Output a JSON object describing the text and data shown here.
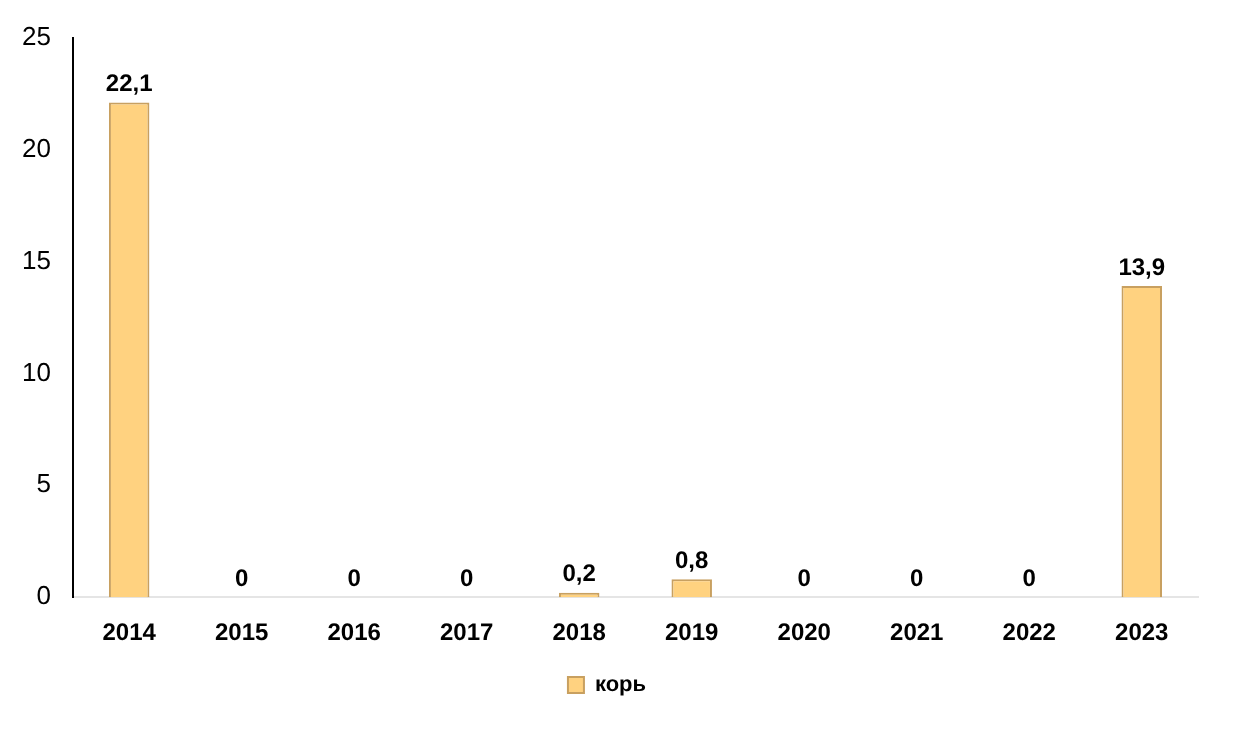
{
  "chart_data": {
    "type": "bar",
    "categories": [
      "2014",
      "2015",
      "2016",
      "2017",
      "2018",
      "2019",
      "2020",
      "2021",
      "2022",
      "2023"
    ],
    "series": [
      {
        "name": "корь",
        "color": "#ffd280",
        "values": [
          22.1,
          0,
          0,
          0,
          0.2,
          0.8,
          0,
          0,
          0,
          13.9
        ],
        "value_labels": [
          "22,1",
          "0",
          "0",
          "0",
          "0,2",
          "0,8",
          "0",
          "0",
          "0",
          "13,9"
        ]
      }
    ],
    "ylim": [
      0,
      25
    ],
    "yticks": [
      0,
      5,
      10,
      15,
      20,
      25
    ],
    "grid": false,
    "legend": "bottom"
  }
}
